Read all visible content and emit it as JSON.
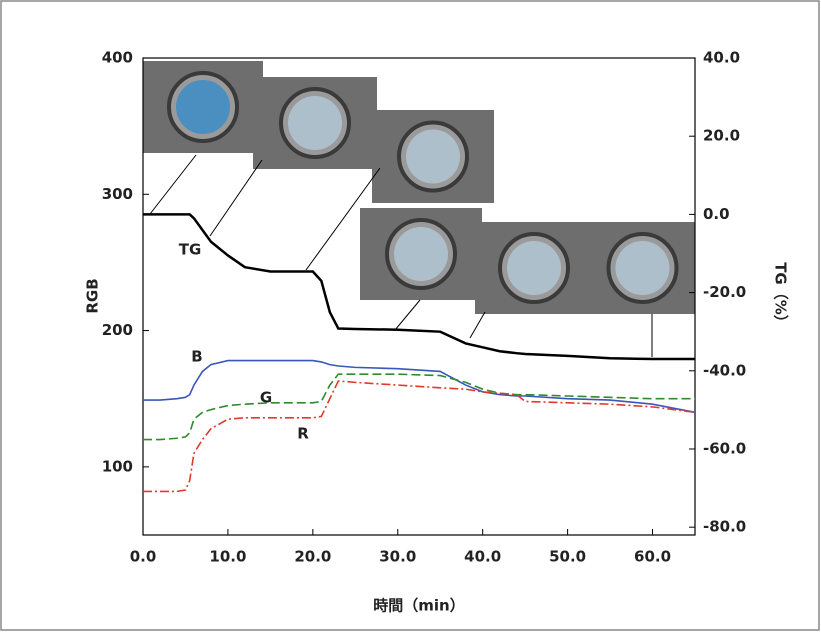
{
  "chart_data": {
    "type": "line",
    "y_label": "RGB",
    "y2_label": "TG（%）",
    "x_label": "時間（min）",
    "annotations": [
      "TG",
      "B",
      "G",
      "R"
    ],
    "x": [
      0,
      2,
      4,
      5,
      5.5,
      6,
      7,
      8,
      10,
      12,
      15,
      20,
      21,
      22,
      23,
      25,
      30,
      35,
      38,
      40,
      42,
      44,
      45,
      50,
      55,
      60,
      65
    ],
    "series": [
      {
        "name": "TG",
        "color": "#000000",
        "axis": "y2",
        "values": [
          0,
          0,
          0,
          0,
          0,
          -1,
          -4,
          -7,
          -10.5,
          -13.5,
          -14.6,
          -14.6,
          -17,
          -25,
          -29.2,
          -29.3,
          -29.5,
          -30,
          -33,
          -34,
          -35,
          -35.5,
          -35.7,
          -36.2,
          -36.8,
          -37,
          -37
        ]
      },
      {
        "name": "B",
        "color": "#3a56b8",
        "values": [
          149,
          149,
          150,
          151,
          153,
          160,
          170,
          175,
          178,
          178,
          178,
          178,
          177,
          175,
          174,
          173,
          172,
          170,
          160,
          155,
          153,
          152,
          152,
          150,
          149,
          146,
          140
        ]
      },
      {
        "name": "G",
        "color": "#2e8b2e",
        "values": [
          120,
          120,
          121,
          122,
          125,
          135,
          140,
          142,
          145,
          146,
          147,
          147,
          148,
          160,
          168,
          168,
          168,
          167,
          162,
          157,
          154,
          153,
          153,
          152,
          151,
          150,
          150
        ]
      },
      {
        "name": "R",
        "color": "#e03a2a",
        "values": [
          82,
          82,
          82,
          83,
          90,
          110,
          120,
          128,
          135,
          136,
          136,
          136,
          137,
          150,
          163,
          162,
          160,
          158,
          157,
          155,
          154,
          153,
          148,
          147,
          146,
          144,
          140
        ]
      }
    ],
    "xlim": [
      0,
      65
    ],
    "xticks": [
      {
        "value": 0,
        "label": "0.0"
      },
      {
        "value": 10,
        "label": "10.0"
      },
      {
        "value": 20,
        "label": "20.0"
      },
      {
        "value": 30,
        "label": "30.0"
      },
      {
        "value": 40,
        "label": "40.0"
      },
      {
        "value": 50,
        "label": "50.0"
      },
      {
        "value": 60,
        "label": "60.0"
      }
    ],
    "ylim": [
      50,
      400
    ],
    "yticks": [
      100,
      200,
      300,
      400
    ],
    "y2lim": [
      -82,
      40
    ],
    "y2ticks": [
      {
        "value": -80,
        "label": "-80.0"
      },
      {
        "value": -60,
        "label": "-60.0"
      },
      {
        "value": -40,
        "label": "-40.0"
      },
      {
        "value": -20,
        "label": "-20.0"
      },
      {
        "value": 0,
        "label": "0.0"
      },
      {
        "value": 20,
        "label": "20.0"
      },
      {
        "value": 40,
        "label": "40.0"
      }
    ]
  }
}
